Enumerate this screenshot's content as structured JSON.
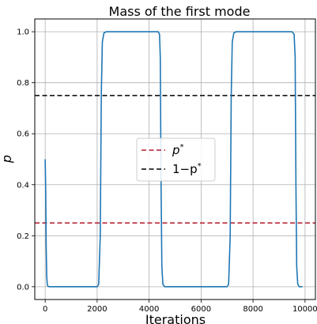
{
  "chart_data": {
    "type": "line",
    "title": "Mass of the first mode",
    "xlabel": "Iterations",
    "ylabel": "p",
    "xlim": [
      -400,
      10400
    ],
    "ylim": [
      -0.05,
      1.05
    ],
    "xticks": [
      0,
      2000,
      4000,
      6000,
      8000,
      10000
    ],
    "yticks": [
      0.0,
      0.2,
      0.4,
      0.6,
      0.8,
      1.0
    ],
    "xtick_labels": [
      "0",
      "2000",
      "4000",
      "6000",
      "8000",
      "10000"
    ],
    "ytick_labels": [
      "0.0",
      "0.2",
      "0.4",
      "0.6",
      "0.8",
      "1.0"
    ],
    "grid": true,
    "legend_position": "center",
    "series": [
      {
        "color": "#1f77b4",
        "style": "solid",
        "x": [
          0,
          20,
          40,
          60,
          80,
          100,
          150,
          300,
          1000,
          1800,
          2000,
          2060,
          2120,
          2160,
          2200,
          2260,
          2350,
          3000,
          4000,
          4350,
          4400,
          4430,
          4460,
          4490,
          4530,
          4600,
          5000,
          6000,
          6800,
          7000,
          7060,
          7120,
          7160,
          7200,
          7260,
          7350,
          8000,
          9000,
          9500,
          9580,
          9620,
          9650,
          9680,
          9720,
          9780,
          9900
        ],
        "y": [
          0.5,
          0.38,
          0.15,
          0.04,
          0.01,
          0.003,
          0.0,
          0.0,
          0.0,
          0.0,
          0.0,
          0.01,
          0.2,
          0.75,
          0.96,
          0.995,
          1.0,
          1.0,
          1.0,
          1.0,
          0.99,
          0.9,
          0.4,
          0.08,
          0.01,
          0.0,
          0.0,
          0.0,
          0.0,
          0.0,
          0.01,
          0.2,
          0.75,
          0.96,
          0.995,
          1.0,
          1.0,
          1.0,
          1.0,
          0.99,
          0.9,
          0.4,
          0.08,
          0.01,
          0.0,
          0.0
        ]
      },
      {
        "name": "p*",
        "color": "#b2182b",
        "style": "dashed",
        "value": 0.25
      },
      {
        "name": "1−p*",
        "color": "#000000",
        "style": "dashed",
        "value": 0.75
      }
    ],
    "legend": [
      {
        "base": "p",
        "sup": "*",
        "color": "#b2182b"
      },
      {
        "base": "1−p",
        "sup": "*",
        "color": "#000000"
      }
    ]
  }
}
